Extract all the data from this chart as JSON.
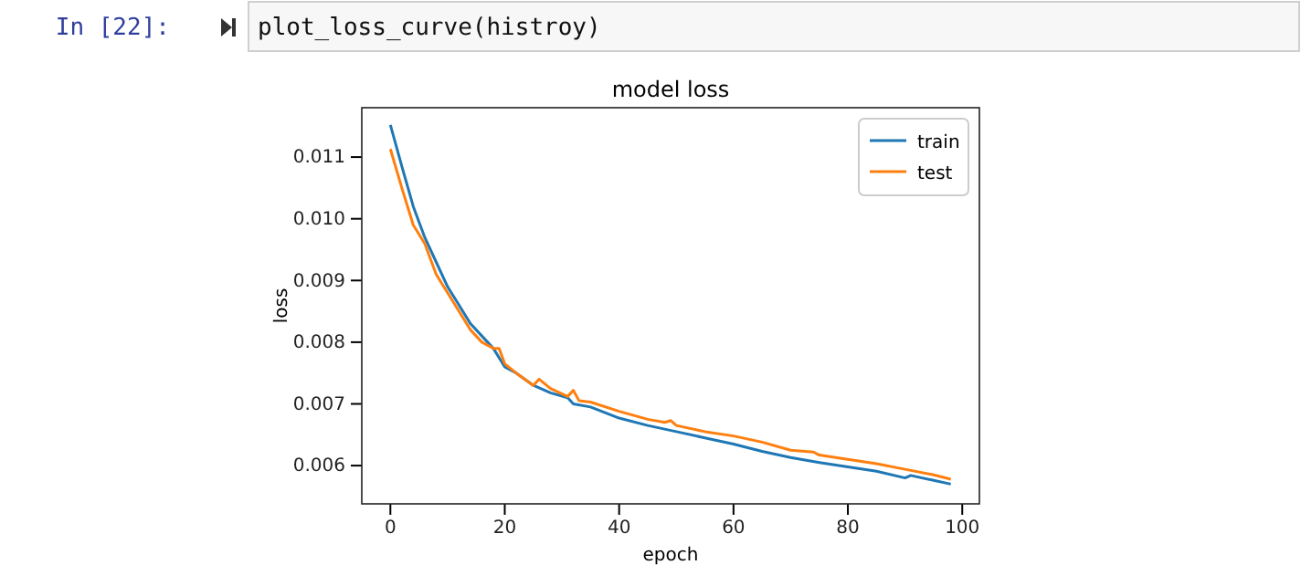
{
  "chart_data": {
    "type": "line",
    "title": "model loss",
    "xlabel": "epoch",
    "ylabel": "loss",
    "annotations": [
      "In [22]:",
      "plot_loss_curve(histroy)"
    ],
    "xlim": [
      -5,
      103
    ],
    "xticks": [
      0,
      20,
      40,
      60,
      80,
      100
    ],
    "ylim": [
      0.00538,
      0.0118
    ],
    "yticks": [
      0.006,
      0.007,
      0.008,
      0.009,
      {
        "value": 0.01,
        "label": "0.010"
      },
      0.011
    ],
    "legend": "top right",
    "grid": false,
    "series": [
      {
        "name": "train",
        "color": "#1f77b4",
        "x": [
          0,
          2,
          4,
          6,
          8,
          10,
          12,
          14,
          16,
          18,
          20,
          22,
          25,
          28,
          31,
          32,
          35,
          40,
          45,
          50,
          55,
          60,
          65,
          70,
          75,
          80,
          85,
          90,
          91,
          95,
          98
        ],
        "values": [
          0.01152,
          0.01085,
          0.0102,
          0.0097,
          0.0093,
          0.0089,
          0.0086,
          0.0083,
          0.0081,
          0.0079,
          0.0076,
          0.0075,
          0.0073,
          0.00718,
          0.0071,
          0.007,
          0.00695,
          0.00677,
          0.00665,
          0.00655,
          0.00645,
          0.00635,
          0.00623,
          0.00613,
          0.00605,
          0.00598,
          0.00591,
          0.0058,
          0.00584,
          0.00576,
          0.0057
        ]
      },
      {
        "name": "test",
        "color": "#ff7f0e",
        "x": [
          0,
          2,
          4,
          6,
          8,
          10,
          12,
          14,
          16,
          18,
          19,
          20,
          22,
          25,
          26,
          28,
          31,
          32,
          33,
          35,
          40,
          45,
          48,
          49,
          50,
          55,
          60,
          65,
          70,
          74,
          75,
          80,
          85,
          90,
          95,
          98
        ],
        "values": [
          0.01113,
          0.0105,
          0.0099,
          0.0096,
          0.0091,
          0.0088,
          0.0085,
          0.0082,
          0.008,
          0.0079,
          0.0079,
          0.00765,
          0.0075,
          0.0073,
          0.0074,
          0.00725,
          0.00712,
          0.00722,
          0.00705,
          0.00703,
          0.00688,
          0.00675,
          0.0067,
          0.00673,
          0.00665,
          0.00655,
          0.00648,
          0.00638,
          0.00625,
          0.00622,
          0.00617,
          0.0061,
          0.00603,
          0.00594,
          0.00585,
          0.00578
        ]
      }
    ]
  }
}
